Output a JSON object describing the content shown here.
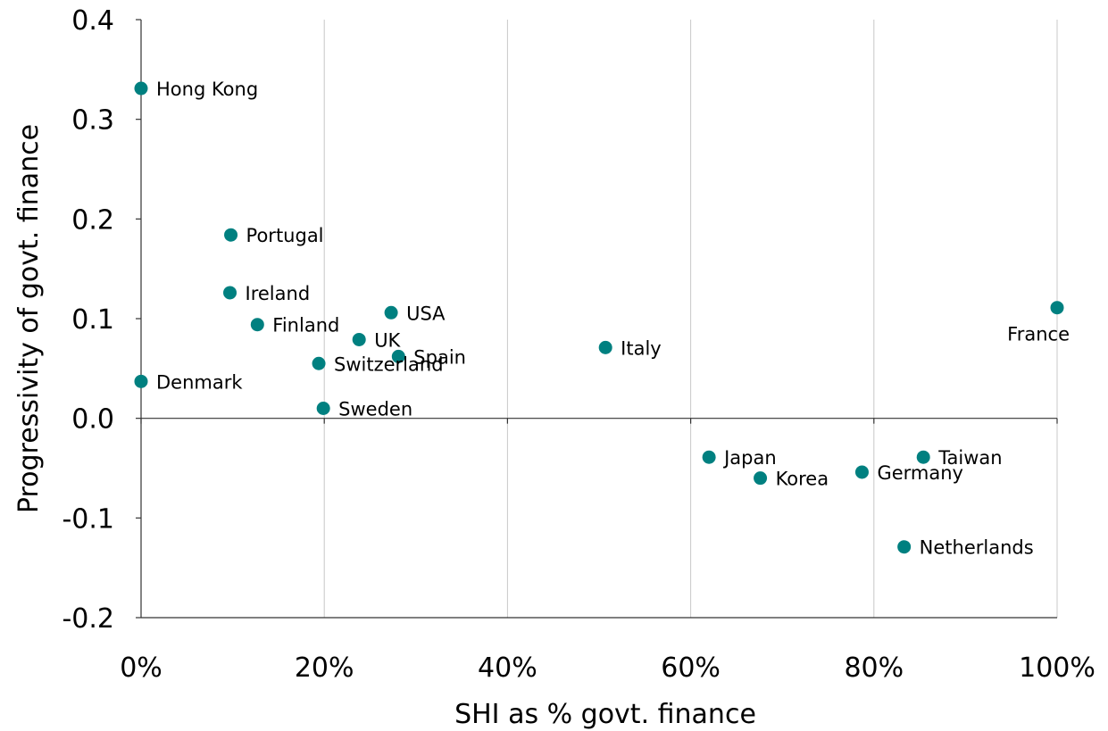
{
  "chart_data": {
    "type": "scatter",
    "xlabel": "SHI as % govt. finance",
    "ylabel": "Progressivity of govt. finance",
    "xlim": [
      0,
      100
    ],
    "ylim": [
      -0.2,
      0.4
    ],
    "x_ticks": [
      0,
      20,
      40,
      60,
      80,
      100
    ],
    "x_tick_labels": [
      "0%",
      "20%",
      "40%",
      "60%",
      "80%",
      "100%"
    ],
    "y_ticks": [
      0.4,
      0.3,
      0.2,
      0.1,
      0.0,
      -0.1,
      -0.2
    ],
    "y_tick_labels": [
      "0.4",
      "0.3",
      "0.2",
      "0.1",
      "0.0",
      "-0.1",
      "-0.2"
    ],
    "grid": true,
    "marker_color": "#008080",
    "points": [
      {
        "label": "Hong Kong",
        "x": 0,
        "y": 0.331
      },
      {
        "label": "Denmark",
        "x": 0,
        "y": 0.037
      },
      {
        "label": "Portugal",
        "x": 9.8,
        "y": 0.184
      },
      {
        "label": "Ireland",
        "x": 9.7,
        "y": 0.126
      },
      {
        "label": "Finland",
        "x": 12.7,
        "y": 0.094
      },
      {
        "label": "Switzerland",
        "x": 19.4,
        "y": 0.055
      },
      {
        "label": "Sweden",
        "x": 19.9,
        "y": 0.01
      },
      {
        "label": "UK",
        "x": 23.8,
        "y": 0.079
      },
      {
        "label": "USA",
        "x": 27.3,
        "y": 0.106
      },
      {
        "label": "Spain",
        "x": 28.1,
        "y": 0.062
      },
      {
        "label": "Italy",
        "x": 50.7,
        "y": 0.071
      },
      {
        "label": "France",
        "x": 100,
        "y": 0.111
      },
      {
        "label": "Japan",
        "x": 62.0,
        "y": -0.039
      },
      {
        "label": "Korea",
        "x": 67.6,
        "y": -0.06
      },
      {
        "label": "Germany",
        "x": 78.7,
        "y": -0.054
      },
      {
        "label": "Taiwan",
        "x": 85.4,
        "y": -0.039
      },
      {
        "label": "Netherlands",
        "x": 83.3,
        "y": -0.129
      }
    ]
  }
}
